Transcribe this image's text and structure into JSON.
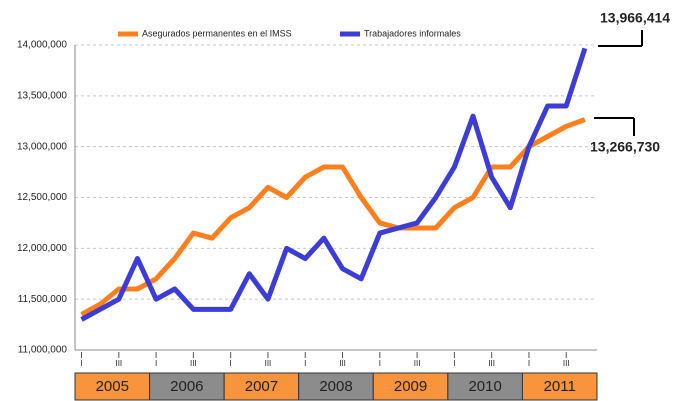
{
  "chart_data": {
    "type": "line",
    "categories": [
      "I",
      null,
      "III",
      null,
      "I",
      null,
      "III",
      null,
      "I",
      null,
      "III",
      null,
      "I",
      null,
      "III",
      null,
      "I",
      null,
      "III",
      null,
      "I",
      null,
      "III",
      null,
      "I",
      null,
      "III",
      null
    ],
    "year_groups": [
      "2005",
      "2006",
      "2007",
      "2008",
      "2009",
      "2010",
      "2011"
    ],
    "year_colors": [
      "#f7943c",
      "#8c8c8c"
    ],
    "series": [
      {
        "name": "Asegurados permanentes en el IMSS",
        "color": "#ff7f1e",
        "values": [
          11350000,
          11450000,
          11600000,
          11600000,
          11700000,
          11900000,
          12150000,
          12100000,
          12300000,
          12400000,
          12600000,
          12500000,
          12700000,
          12800000,
          12800000,
          12500000,
          12250000,
          12200000,
          12200000,
          12200000,
          12400000,
          12500000,
          12800000,
          12800000,
          13000000,
          13100000,
          13200000,
          13266730
        ]
      },
      {
        "name": "Trabajadores informales",
        "color": "#3c3cd6",
        "values": [
          11300000,
          11400000,
          11500000,
          11900000,
          11500000,
          11600000,
          11400000,
          11400000,
          11400000,
          11750000,
          11500000,
          12000000,
          11900000,
          12100000,
          11800000,
          11700000,
          12150000,
          12200000,
          12250000,
          12500000,
          12800000,
          13300000,
          12700000,
          12400000,
          13000000,
          13400000,
          13400000,
          13966414
        ]
      }
    ],
    "annotations": [
      "13,966,414",
      "13,266,730"
    ],
    "ylim": [
      11000000,
      14000000
    ],
    "yticks": [
      {
        "value": 11000000,
        "label": "11,000,000"
      },
      {
        "value": 11500000,
        "label": "11,500,000"
      },
      {
        "value": 12000000,
        "label": "12,000,000"
      },
      {
        "value": 12500000,
        "label": "12,500,000"
      },
      {
        "value": 13000000,
        "label": "13,000,000"
      },
      {
        "value": 13500000,
        "label": "13,500,000"
      },
      {
        "value": 14000000,
        "label": "14,000,000"
      }
    ],
    "grid": true
  }
}
